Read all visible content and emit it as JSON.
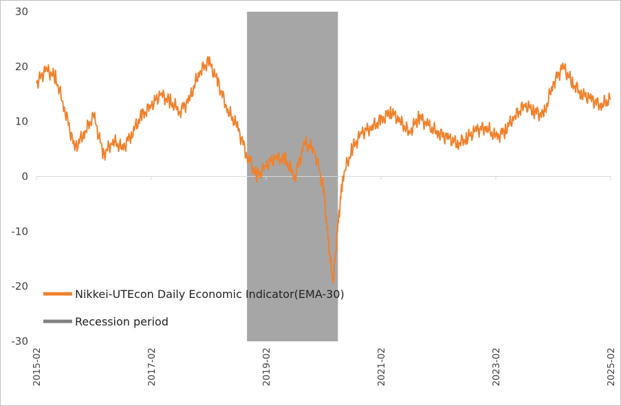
{
  "chart_data": {
    "type": "line",
    "title": "",
    "xlabel": "",
    "ylabel": "",
    "ylim": [
      -30,
      30
    ],
    "y_ticks": [
      "30",
      "20",
      "10",
      "0",
      "-10",
      "-20",
      "-30"
    ],
    "x_range": [
      "2015-02",
      "2025-02"
    ],
    "x_tick_labels": [
      "2015-02",
      "2017-02",
      "2019-02",
      "2021-02",
      "2023-02",
      "2025-02"
    ],
    "grid": false,
    "legend_position": "lower-left",
    "colors": {
      "line": "#f0812c",
      "recession": "#a6a6a6"
    },
    "recession": {
      "name": "Recession period",
      "start": "2018-10",
      "end": "2020-05"
    },
    "series": [
      {
        "name": "Nikkei-UTEcon Daily Economic Indicator(EMA-30)",
        "x": [
          "2015-02",
          "2015-04",
          "2015-06",
          "2015-08",
          "2015-10",
          "2015-12",
          "2016-02",
          "2016-04",
          "2016-06",
          "2016-08",
          "2016-10",
          "2016-12",
          "2017-02",
          "2017-04",
          "2017-06",
          "2017-08",
          "2017-10",
          "2017-12",
          "2018-02",
          "2018-04",
          "2018-06",
          "2018-08",
          "2018-10",
          "2018-12",
          "2019-02",
          "2019-04",
          "2019-06",
          "2019-08",
          "2019-10",
          "2019-12",
          "2020-02",
          "2020-03",
          "2020-04",
          "2020-05",
          "2020-06",
          "2020-08",
          "2020-10",
          "2020-12",
          "2021-02",
          "2021-04",
          "2021-06",
          "2021-08",
          "2021-10",
          "2021-12",
          "2022-02",
          "2022-04",
          "2022-06",
          "2022-08",
          "2022-10",
          "2022-12",
          "2023-02",
          "2023-04",
          "2023-06",
          "2023-08",
          "2023-10",
          "2023-12",
          "2024-02",
          "2024-04",
          "2024-06",
          "2024-08",
          "2024-10",
          "2024-12",
          "2025-02"
        ],
        "values": [
          17,
          19.5,
          18,
          12,
          5,
          8,
          11,
          4,
          6.5,
          5,
          8,
          11,
          13,
          15,
          13.5,
          12,
          14,
          19,
          21,
          17,
          12,
          9,
          4,
          0,
          2,
          3.5,
          3,
          0,
          6,
          5,
          -2,
          -12,
          -19,
          -9,
          0,
          5,
          8,
          9,
          10,
          12,
          10,
          8,
          11,
          9,
          8,
          7,
          6,
          7,
          8.5,
          9,
          7,
          8.5,
          11,
          13,
          12,
          11,
          17,
          20,
          17,
          15,
          14,
          13,
          14
        ]
      }
    ]
  }
}
